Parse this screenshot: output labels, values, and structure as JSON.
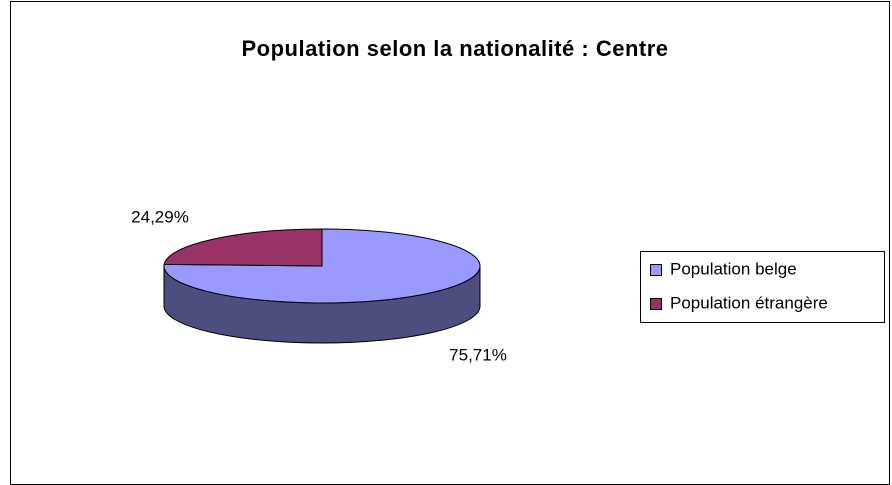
{
  "chart_data": {
    "type": "pie3d",
    "title": "Population selon la nationalité : Centre",
    "categories": [
      "Population belge",
      "Population étrangère"
    ],
    "values": [
      75.71,
      24.29
    ],
    "value_labels": [
      "75,71%",
      "24,29%"
    ],
    "colors": [
      "#9999ff",
      "#993366"
    ],
    "legend": "right"
  }
}
